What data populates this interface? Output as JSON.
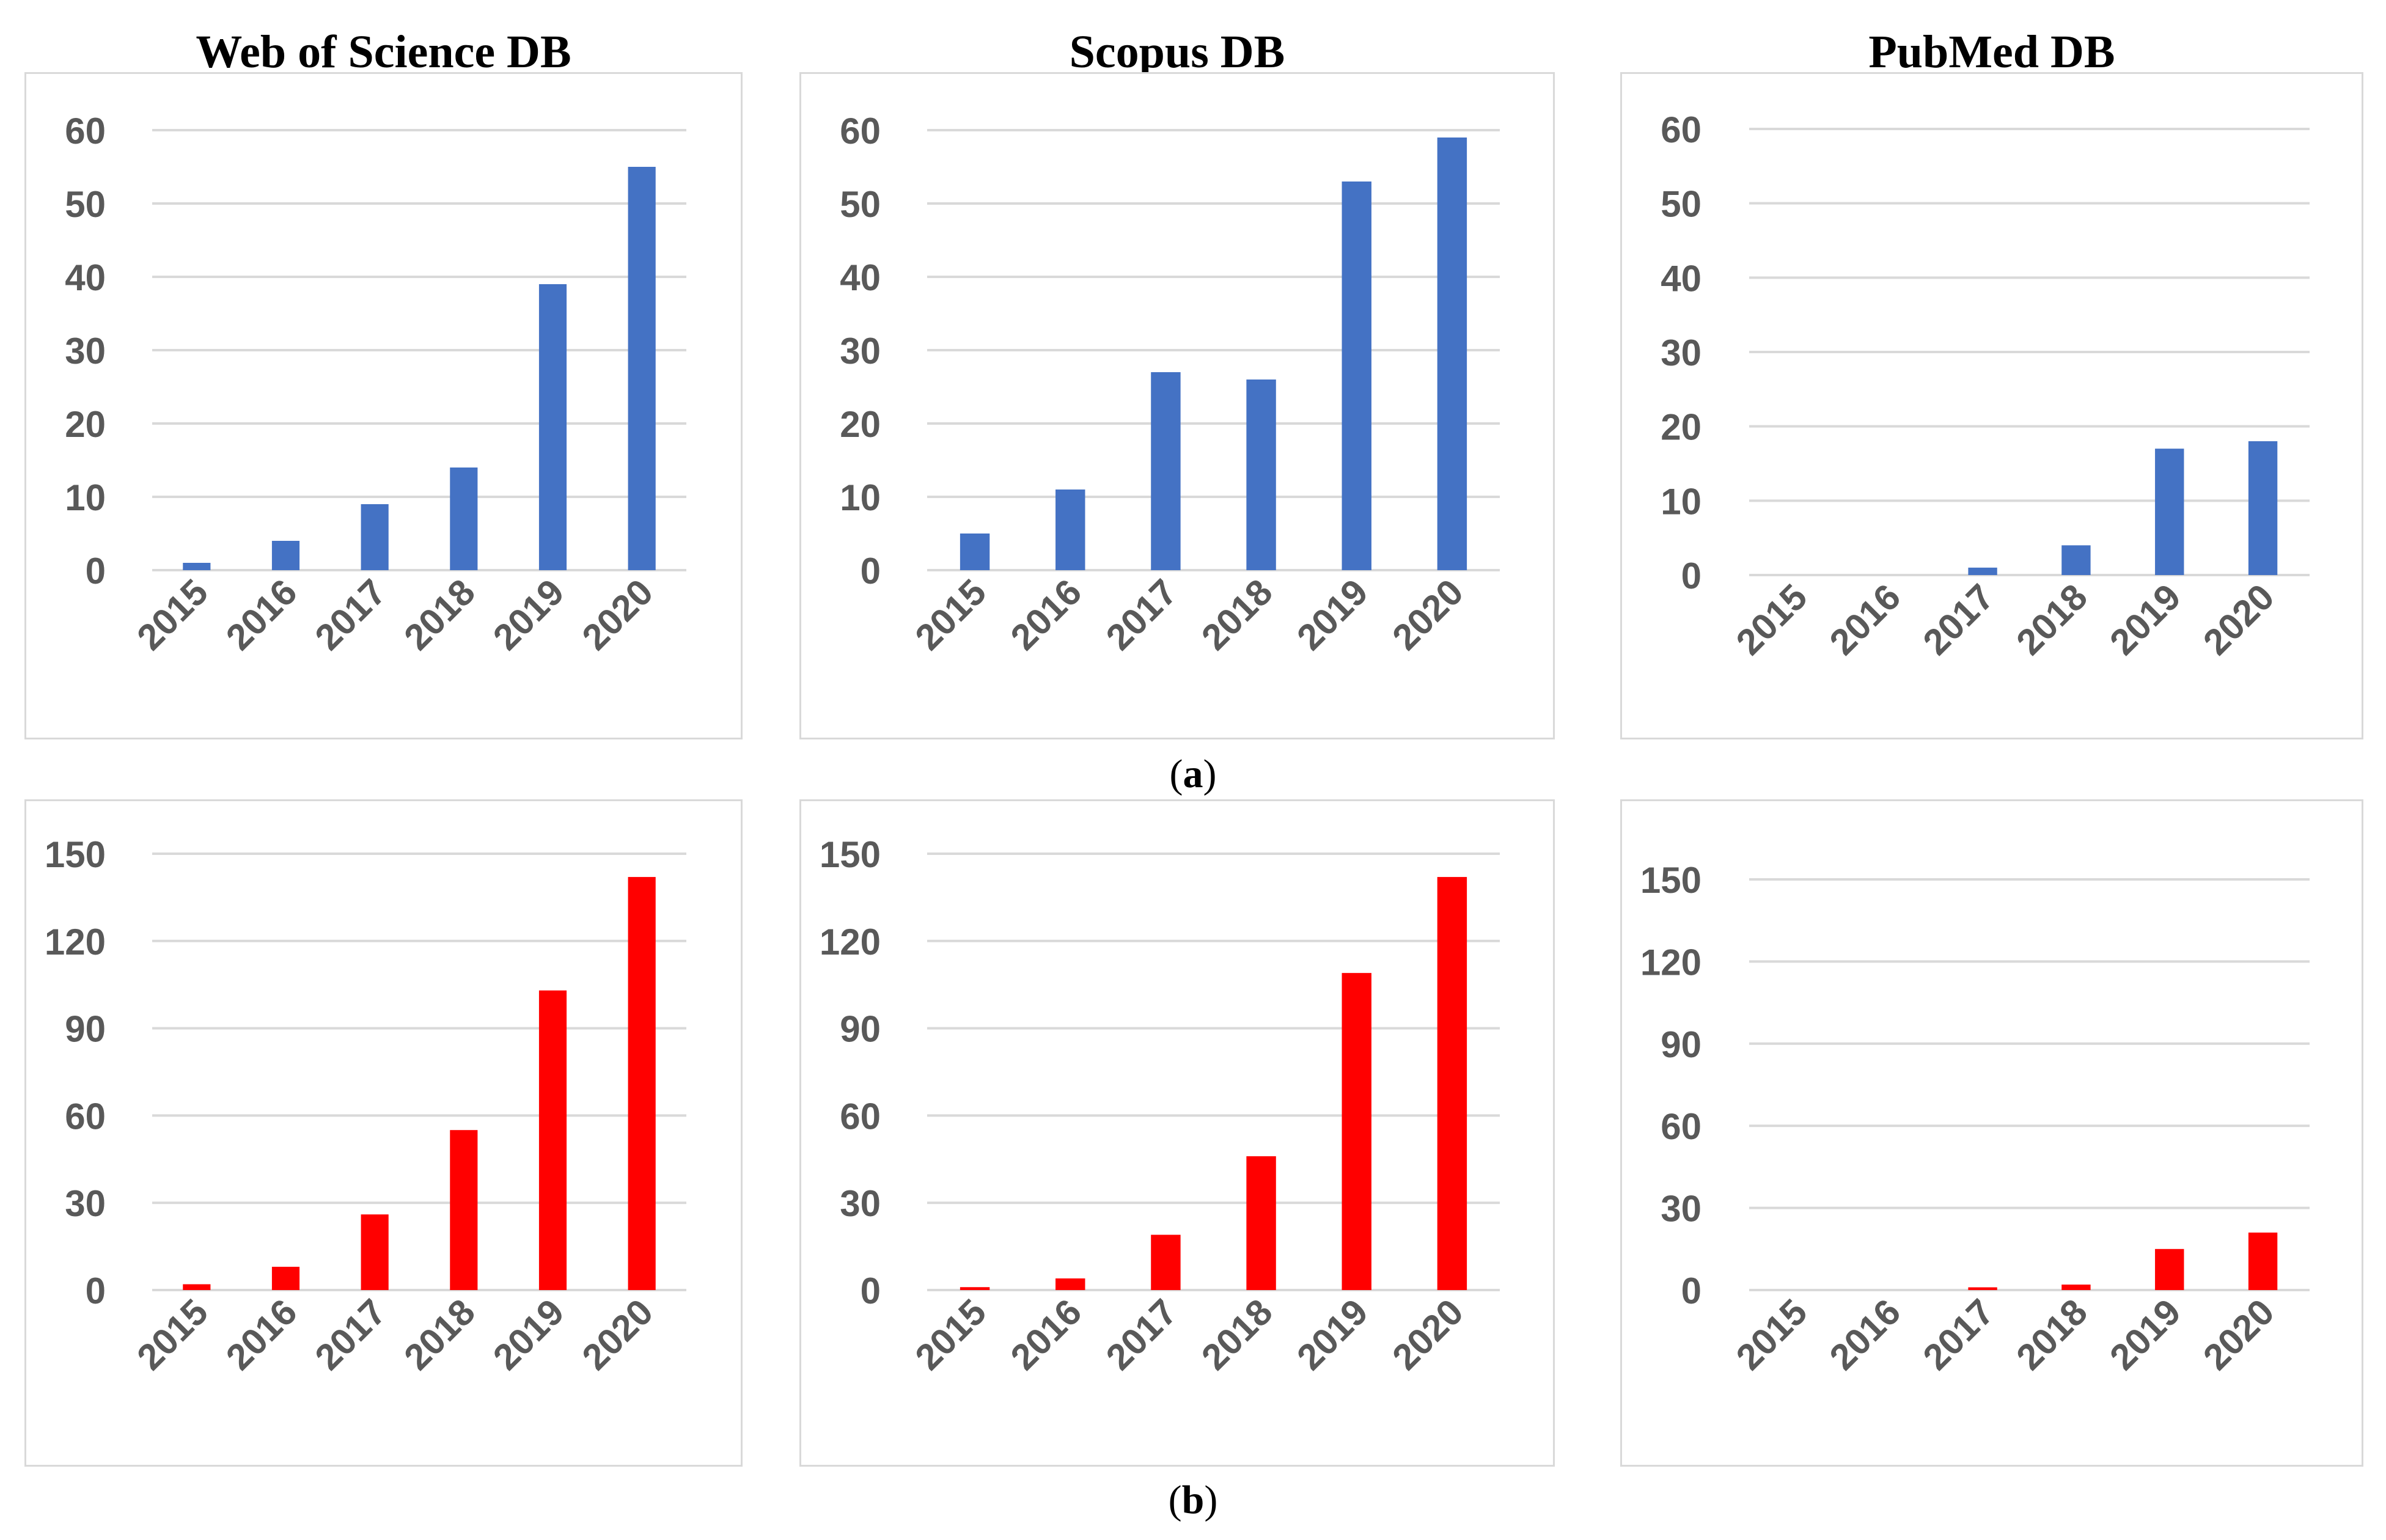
{
  "column_titles": [
    "Web of Science DB",
    "Scopus DB",
    "PubMed DB"
  ],
  "captions": {
    "a": {
      "open": "(",
      "letter": "a",
      "close": ")"
    },
    "b": {
      "open": "(",
      "letter": "b",
      "close": ")"
    }
  },
  "colors": {
    "row_a": "#4472c4",
    "row_b": "#ff0000",
    "grid": "#d9d9d9",
    "tick_text": "#595959"
  },
  "chart_data": [
    {
      "type": "bar",
      "row": "a",
      "database": "Web of Science DB",
      "categories": [
        "2015",
        "2016",
        "2017",
        "2018",
        "2019",
        "2020"
      ],
      "values": [
        1,
        4,
        9,
        14,
        39,
        55
      ],
      "ylim": [
        0,
        60
      ],
      "yticks": [
        0,
        10,
        20,
        30,
        40,
        50,
        60
      ],
      "grid": true
    },
    {
      "type": "bar",
      "row": "a",
      "database": "Scopus DB",
      "categories": [
        "2015",
        "2016",
        "2017",
        "2018",
        "2019",
        "2020"
      ],
      "values": [
        5,
        11,
        27,
        26,
        53,
        59
      ],
      "ylim": [
        0,
        60
      ],
      "yticks": [
        0,
        10,
        20,
        30,
        40,
        50,
        60
      ],
      "grid": true
    },
    {
      "type": "bar",
      "row": "a",
      "database": "PubMed DB",
      "categories": [
        "2015",
        "2016",
        "2017",
        "2018",
        "2019",
        "2020"
      ],
      "values": [
        0,
        0,
        1,
        4,
        17,
        18
      ],
      "ylim": [
        0,
        60
      ],
      "yticks": [
        0,
        10,
        20,
        30,
        40,
        50,
        60
      ],
      "grid": true
    },
    {
      "type": "bar",
      "row": "b",
      "database": "Web of Science DB",
      "categories": [
        "2015",
        "2016",
        "2017",
        "2018",
        "2019",
        "2020"
      ],
      "values": [
        2,
        8,
        26,
        55,
        103,
        142
      ],
      "ylim": [
        0,
        150
      ],
      "yticks": [
        0,
        30,
        60,
        90,
        120,
        150
      ],
      "grid": true
    },
    {
      "type": "bar",
      "row": "b",
      "database": "Scopus DB",
      "categories": [
        "2015",
        "2016",
        "2017",
        "2018",
        "2019",
        "2020"
      ],
      "values": [
        1,
        4,
        19,
        46,
        109,
        142
      ],
      "ylim": [
        0,
        150
      ],
      "yticks": [
        0,
        30,
        60,
        90,
        120,
        150
      ],
      "grid": true
    },
    {
      "type": "bar",
      "row": "b",
      "database": "PubMed DB",
      "categories": [
        "2015",
        "2016",
        "2017",
        "2018",
        "2019",
        "2020"
      ],
      "values": [
        0,
        0,
        1,
        2,
        15,
        21
      ],
      "ylim": [
        0,
        150
      ],
      "yticks": [
        0,
        30,
        60,
        90,
        120,
        150
      ],
      "grid": true
    }
  ]
}
